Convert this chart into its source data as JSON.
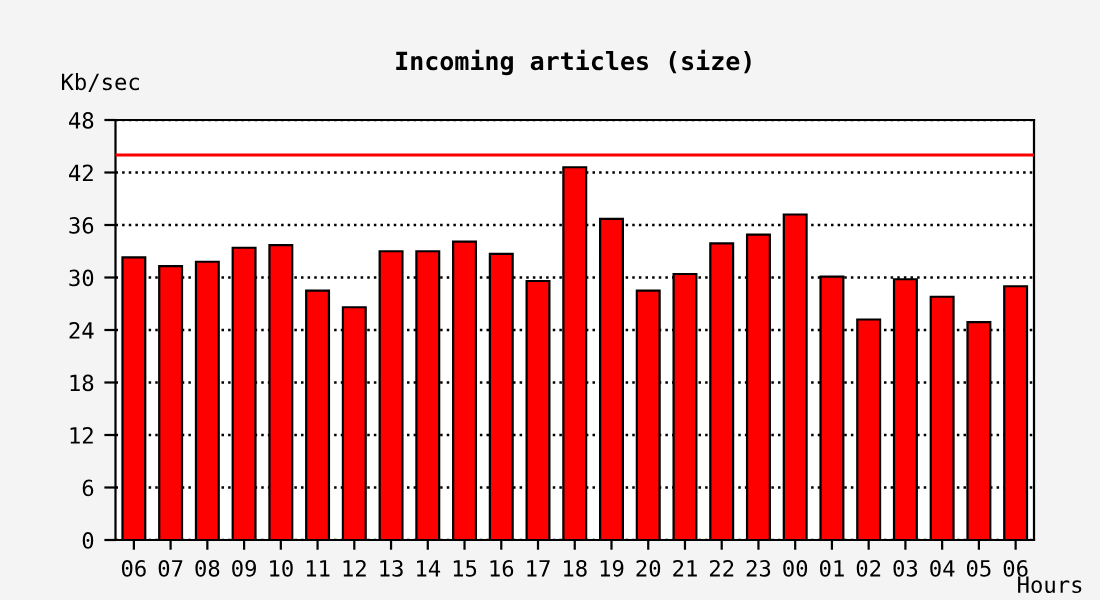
{
  "chart_data": {
    "type": "bar",
    "title": "Incoming articles (size)",
    "ylabel": "Kb/sec",
    "xlabel": "Hours",
    "categories": [
      "06",
      "07",
      "08",
      "09",
      "10",
      "11",
      "12",
      "13",
      "14",
      "15",
      "16",
      "17",
      "18",
      "19",
      "20",
      "21",
      "22",
      "23",
      "00",
      "01",
      "02",
      "03",
      "04",
      "05",
      "06"
    ],
    "values": [
      32.3,
      31.3,
      31.8,
      33.4,
      33.7,
      28.5,
      26.6,
      33.0,
      33.0,
      34.1,
      32.7,
      29.6,
      42.6,
      36.7,
      28.5,
      30.4,
      33.9,
      34.9,
      37.2,
      30.1,
      25.2,
      29.8,
      27.8,
      24.9,
      29.0
    ],
    "color": "#ff0000",
    "ylim": [
      0,
      48
    ],
    "yticks": [
      0,
      6,
      12,
      18,
      24,
      30,
      36,
      42,
      48
    ],
    "grid": "y",
    "line_style": "dotted",
    "ref_lines": [
      {
        "axis": "y",
        "value": 44,
        "color": "#ff0000"
      }
    ]
  }
}
